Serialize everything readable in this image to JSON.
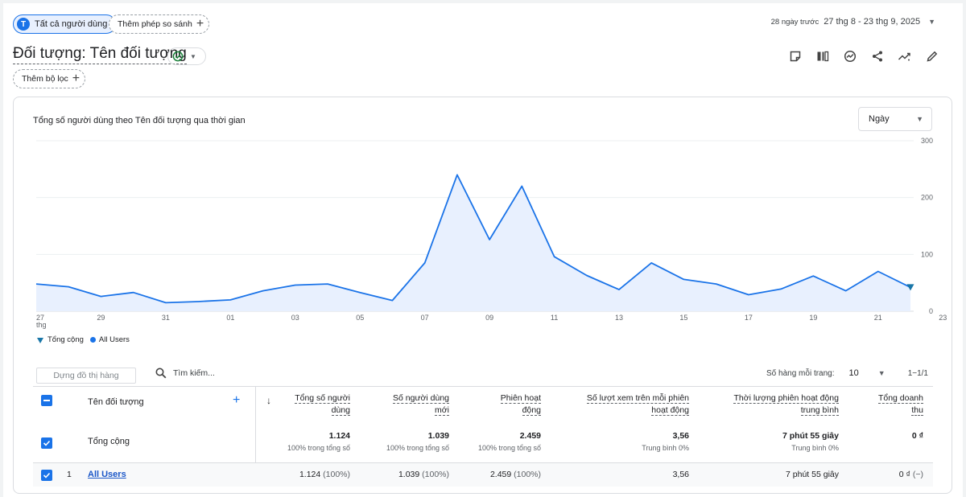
{
  "header": {
    "segment_chip": {
      "avatar_letter": "T",
      "label": "Tất cả người dùng"
    },
    "add_comparison": "Thêm phép so sánh",
    "date_preset": "28 ngày trước",
    "date_range": "27 thg 8 - 23 thg 9, 2025"
  },
  "report": {
    "title": "Đối tượng: Tên đối tượng",
    "add_filter": "Thêm bộ lọc",
    "toolbar_icons": [
      "note-icon",
      "compare-columns-icon",
      "insights-icon",
      "share-icon",
      "trend-icon",
      "edit-icon"
    ]
  },
  "chart": {
    "title": "Tổng số người dùng theo Tên đối tượng qua thời gian",
    "granularity": "Ngày",
    "legend": {
      "total": "Tổng cộng",
      "series": "All Users"
    },
    "colors": {
      "line": "#1a73e8",
      "fill": "#e8f0fe"
    }
  },
  "chart_data": {
    "type": "area",
    "title": "Tổng số người dùng theo Tên đối tượng qua thời gian",
    "x_tick_labels": [
      "27",
      "29",
      "31",
      "01",
      "03",
      "05",
      "07",
      "09",
      "11",
      "13",
      "15",
      "17",
      "19",
      "21",
      "23"
    ],
    "x_tick_sublabel": "thg",
    "ylim": [
      0,
      300
    ],
    "y_ticks": [
      0,
      100,
      200,
      300
    ],
    "grid": true,
    "legend_position": "bottom-left",
    "x": [
      "27",
      "28",
      "29",
      "30",
      "31",
      "01",
      "02",
      "03",
      "04",
      "05",
      "06",
      "07",
      "08",
      "09",
      "10",
      "11",
      "12",
      "13",
      "14",
      "15",
      "16",
      "17",
      "18",
      "19",
      "20",
      "21",
      "22",
      "23"
    ],
    "series": [
      {
        "name": "All Users",
        "values": [
          48,
          43,
          26,
          33,
          15,
          17,
          20,
          36,
          46,
          48,
          33,
          19,
          85,
          240,
          126,
          220,
          96,
          63,
          38,
          85,
          56,
          48,
          29,
          39,
          62,
          36,
          70,
          42
        ]
      }
    ]
  },
  "table": {
    "chart_rows_placeholder": "Dựng đồ thị hàng",
    "search_placeholder": "Tìm kiếm...",
    "rows_per_page_label": "Số hàng mỗi trang:",
    "rows_per_page": "10",
    "pagination": "1−1/1",
    "dimension_header": "Tên đối tượng",
    "metric_headers": [
      {
        "line1": "Tổng số người",
        "line2": "dùng"
      },
      {
        "line1": "Số người dùng",
        "line2": "mới"
      },
      {
        "line1": "Phiên hoạt",
        "line2": "động"
      },
      {
        "line1": "Số lượt xem trên mỗi phiên",
        "line2": "hoạt động"
      },
      {
        "line1": "Thời lượng phiên hoạt động",
        "line2": "trung bình"
      },
      {
        "line1": "Tổng doanh",
        "line2": "thu"
      }
    ],
    "totals": {
      "label": "Tổng cộng",
      "cells": [
        {
          "value": "1.124",
          "sub": "100% trong tổng số"
        },
        {
          "value": "1.039",
          "sub": "100% trong tổng số"
        },
        {
          "value": "2.459",
          "sub": "100% trong tổng số"
        },
        {
          "value": "3,56",
          "sub": "Trung bình 0%"
        },
        {
          "value": "7 phút 55 giây",
          "sub": "Trung bình 0%"
        },
        {
          "value": "0 ₫",
          "sub": ""
        }
      ]
    },
    "rows": [
      {
        "index": "1",
        "name": "All Users",
        "cells": [
          {
            "value": "1.124",
            "pct": "(100%)"
          },
          {
            "value": "1.039",
            "pct": "(100%)"
          },
          {
            "value": "2.459",
            "pct": "(100%)"
          },
          {
            "value": "3,56",
            "pct": ""
          },
          {
            "value": "7 phút 55 giây",
            "pct": ""
          },
          {
            "value": "0 ₫",
            "pct": "(−)"
          }
        ]
      }
    ]
  }
}
